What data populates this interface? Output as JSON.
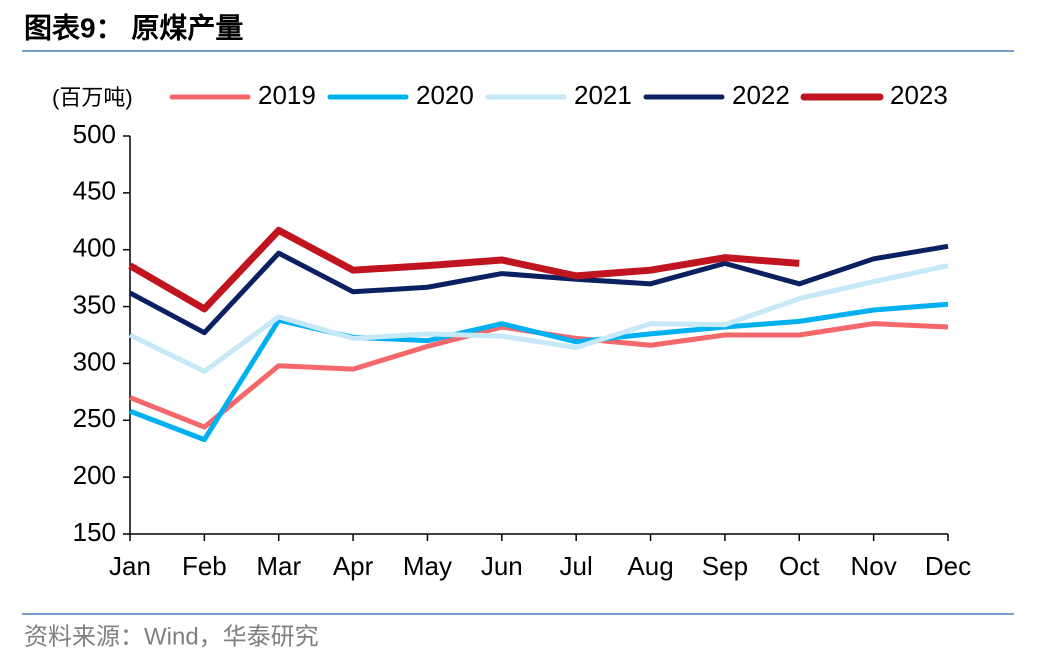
{
  "chart_data": {
    "type": "line",
    "title": "图表9： 原煤产量",
    "y_label": "(百万吨)",
    "source": "资料来源：Wind，华泰研究",
    "categories": [
      "Jan",
      "Feb",
      "Mar",
      "Apr",
      "May",
      "Jun",
      "Jul",
      "Aug",
      "Sep",
      "Oct",
      "Nov",
      "Dec"
    ],
    "series": [
      {
        "name": "2019",
        "color": "#f4686b",
        "values": [
          270,
          244,
          298,
          295,
          315,
          332,
          322,
          316,
          325,
          325,
          335,
          332
        ]
      },
      {
        "name": "2020",
        "color": "#00b0f0",
        "values": [
          258,
          233,
          338,
          323,
          320,
          335,
          319,
          326,
          332,
          337,
          347,
          352
        ]
      },
      {
        "name": "2021",
        "color": "#c5e9f7",
        "values": [
          325,
          293,
          341,
          322,
          326,
          324,
          314,
          335,
          334,
          357,
          372,
          386
        ]
      },
      {
        "name": "2022",
        "color": "#0a2060",
        "values": [
          362,
          327,
          397,
          363,
          367,
          379,
          374,
          370,
          388,
          370,
          392,
          403
        ]
      },
      {
        "name": "2023",
        "color": "#c0141f",
        "values": [
          386,
          348,
          417,
          382,
          386,
          391,
          377,
          382,
          393,
          388,
          null,
          null
        ]
      }
    ],
    "ylim": [
      150,
      500
    ],
    "yticks": [
      150,
      200,
      250,
      300,
      350,
      400,
      450,
      500
    ],
    "legend": "top",
    "grid": false
  }
}
